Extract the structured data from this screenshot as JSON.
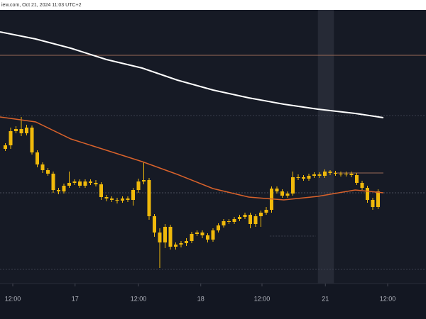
{
  "chart_data": {
    "type": "candlestick",
    "title": "iew.com, Oct 21, 2024 11:03 UTC+2",
    "color": "#f0b90b",
    "xlim": [
      -1,
      79
    ],
    "ylim": [
      0,
      386
    ],
    "xticks": [
      {
        "value": 1.4,
        "label": "12:00"
      },
      {
        "value": 13.1,
        "label": "17"
      },
      {
        "value": 25,
        "label": "12:00"
      },
      {
        "value": 36.7,
        "label": "18"
      },
      {
        "value": 48.2,
        "label": "12:00"
      },
      {
        "value": 60.1,
        "label": "21"
      },
      {
        "value": 71.8,
        "label": "12:00"
      }
    ],
    "open": [
      190,
      195,
      215,
      218,
      212,
      220,
      185,
      168,
      160,
      155,
      132,
      130,
      138,
      142,
      144,
      138,
      144,
      142,
      140,
      122,
      120,
      118,
      117,
      120,
      118,
      132,
      144,
      146,
      95,
      72,
      58,
      80,
      52,
      55,
      57,
      60,
      70,
      72,
      68,
      62,
      75,
      82,
      88,
      87,
      91,
      94,
      97,
      84,
      95,
      100,
      104,
      134,
      130,
      124,
      127,
      150,
      150,
      148,
      152,
      154,
      152,
      158,
      156,
      155,
      154,
      155,
      153,
      142,
      135,
      118,
      108
    ],
    "high": [
      198,
      220,
      222,
      235,
      224,
      223,
      188,
      171,
      163,
      158,
      135,
      141,
      158,
      147,
      147,
      147,
      147,
      146,
      143,
      125,
      123,
      121,
      123,
      123,
      135,
      148,
      172,
      149,
      98,
      78,
      84,
      83,
      58,
      60,
      64,
      73,
      75,
      75,
      71,
      78,
      85,
      91,
      91,
      94,
      97,
      100,
      100,
      98,
      103,
      108,
      137,
      137,
      133,
      130,
      158,
      154,
      153,
      155,
      157,
      157,
      161,
      160,
      159,
      158,
      158,
      158,
      156,
      145,
      138,
      121,
      133
    ],
    "low": [
      187,
      190,
      212,
      208,
      209,
      182,
      164,
      156,
      152,
      128,
      126,
      127,
      135,
      139,
      135,
      135,
      139,
      137,
      118,
      116,
      115,
      113,
      114,
      115,
      110,
      128,
      140,
      90,
      66,
      22,
      50,
      48,
      48,
      51,
      53,
      57,
      67,
      64,
      58,
      59,
      72,
      79,
      84,
      84,
      88,
      91,
      78,
      80,
      80,
      97,
      100,
      127,
      121,
      121,
      124,
      146,
      145,
      145,
      149,
      149,
      149,
      153,
      152,
      151,
      151,
      150,
      139,
      132,
      114,
      104,
      105
    ],
    "close": [
      195,
      215,
      218,
      212,
      220,
      185,
      168,
      160,
      155,
      132,
      130,
      138,
      142,
      144,
      138,
      144,
      142,
      140,
      122,
      120,
      118,
      117,
      120,
      118,
      132,
      144,
      146,
      95,
      72,
      58,
      80,
      52,
      55,
      57,
      60,
      70,
      72,
      68,
      62,
      75,
      82,
      88,
      87,
      91,
      94,
      97,
      84,
      95,
      100,
      104,
      134,
      130,
      124,
      127,
      150,
      150,
      148,
      152,
      154,
      152,
      158,
      156,
      155,
      154,
      155,
      153,
      142,
      135,
      118,
      108,
      130
    ],
    "lines": [
      {
        "color": "#ffffff",
        "x": [
          -1,
          5.7,
          12.3,
          19,
          25.7,
          32.3,
          39,
          45.7,
          52.3,
          58.7,
          65.7,
          71
        ],
        "values": [
          355,
          345,
          332,
          316,
          304,
          287,
          273,
          262,
          253,
          246,
          240,
          234
        ]
      },
      {
        "color": "#d9622b",
        "x": [
          -1,
          5.7,
          12.3,
          19,
          25.7,
          32.3,
          39,
          45.7,
          52.3,
          58.7,
          65.7,
          71
        ],
        "values": [
          235,
          228,
          204,
          188,
          172,
          154,
          134,
          122,
          118,
          123,
          132,
          128
        ]
      }
    ],
    "levels": [
      {
        "value": 322,
        "color": "#9a6a58",
        "x": [
          -1,
          79
        ]
      },
      {
        "value": 237,
        "color": "#3a3f4d",
        "x": [
          -1,
          79
        ]
      },
      {
        "value": 128,
        "color": "#4a4f5c",
        "x": [
          -1,
          79
        ]
      },
      {
        "value": 20,
        "color": "#3a3f4d",
        "x": [
          -1,
          79
        ]
      },
      {
        "value": 67,
        "color": "#3a3f4d",
        "x": [
          49.7,
          58.3
        ]
      },
      {
        "value": 156,
        "color": "#9a6a58",
        "x": [
          61.7,
          71
        ]
      }
    ],
    "highlight": [
      58.7,
      61.7
    ]
  }
}
